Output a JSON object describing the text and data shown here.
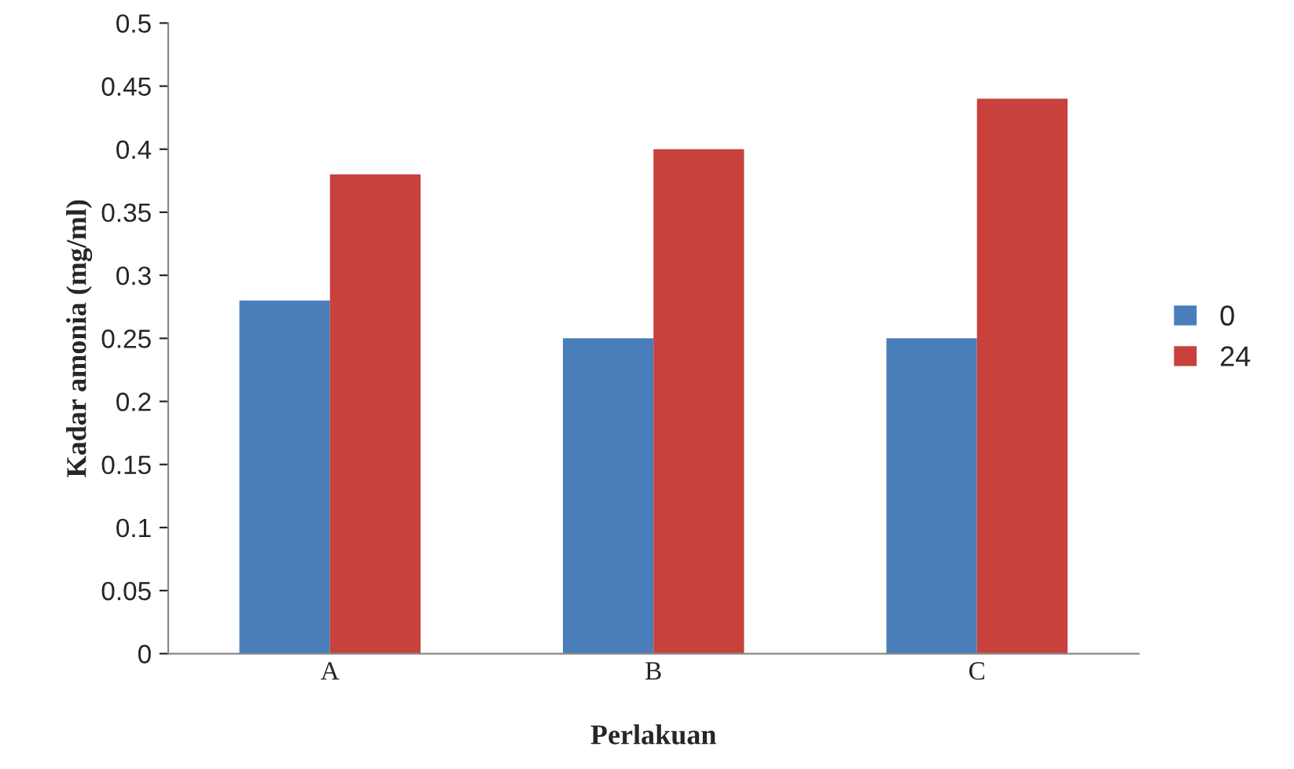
{
  "chart_data": {
    "type": "bar",
    "xlabel": "Perlakuan",
    "ylabel": "Kadar amonia (mg/ml)",
    "categories": [
      "A",
      "B",
      "C"
    ],
    "series": [
      {
        "name": "0",
        "color": "#4a7ebb",
        "values": [
          0.28,
          0.25,
          0.25
        ]
      },
      {
        "name": "24",
        "color": "#c8413c",
        "values": [
          0.38,
          0.4,
          0.44
        ]
      }
    ],
    "ylim": [
      0,
      0.5
    ],
    "yticks": [
      0,
      0.05,
      0.1,
      0.15,
      0.2,
      0.25,
      0.3,
      0.35,
      0.4,
      0.45,
      0.5
    ],
    "grid": false,
    "legend": "right"
  }
}
